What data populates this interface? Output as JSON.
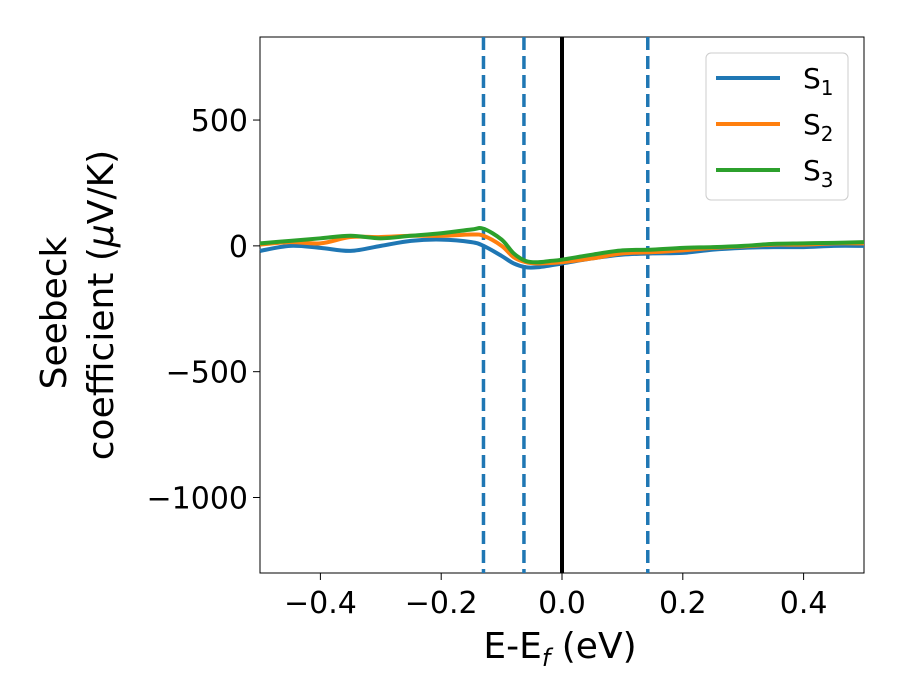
{
  "chart_data": {
    "type": "line",
    "xlabel": {
      "main": "E-E",
      "sub": "f",
      "unit": " (eV)"
    },
    "ylabel": {
      "line1": "Seebeck",
      "line2_pre": "coefficient  (",
      "line2_mu": "μ",
      "line2_post": "V/K)"
    },
    "xlim": [
      -0.5,
      0.5
    ],
    "ylim": [
      -1300,
      830
    ],
    "xticks": [
      {
        "value": -0.4,
        "label": "−0.4"
      },
      {
        "value": -0.2,
        "label": "−0.2"
      },
      {
        "value": 0.0,
        "label": "0.0"
      },
      {
        "value": 0.2,
        "label": "0.2"
      },
      {
        "value": 0.4,
        "label": "0.4"
      }
    ],
    "yticks": [
      {
        "value": 500,
        "label": "500"
      },
      {
        "value": 0,
        "label": "0"
      },
      {
        "value": -500,
        "label": "−500"
      },
      {
        "value": -1000,
        "label": "−1000"
      }
    ],
    "legend_position": "top-right",
    "vertical_lines": [
      {
        "x": -0.13,
        "style": "dashed",
        "color": "#1f77b4"
      },
      {
        "x": -0.063,
        "style": "dashed",
        "color": "#1f77b4"
      },
      {
        "x": 0.0,
        "style": "solid",
        "color": "#000000"
      },
      {
        "x": 0.142,
        "style": "dashed",
        "color": "#1f77b4"
      }
    ],
    "x": [
      -0.5,
      -0.45,
      -0.4,
      -0.35,
      -0.3,
      -0.25,
      -0.2,
      -0.15,
      -0.13,
      -0.1,
      -0.08,
      -0.06,
      -0.04,
      -0.02,
      0.0,
      0.05,
      0.1,
      0.15,
      0.2,
      0.25,
      0.3,
      0.35,
      0.4,
      0.45,
      0.5
    ],
    "series": [
      {
        "name": "S",
        "sub": "1",
        "color": "#1f77b4",
        "values": [
          -20,
          0,
          -8,
          -20,
          0,
          20,
          25,
          15,
          0,
          -40,
          -70,
          -85,
          -85,
          -78,
          -70,
          -50,
          -35,
          -30,
          -28,
          -15,
          -8,
          -5,
          -5,
          0,
          0
        ]
      },
      {
        "name": "S",
        "sub": "2",
        "color": "#ff7f0e",
        "values": [
          5,
          15,
          10,
          35,
          35,
          40,
          40,
          45,
          40,
          0,
          -45,
          -65,
          -70,
          -68,
          -65,
          -50,
          -30,
          -25,
          -18,
          -8,
          -2,
          5,
          5,
          10,
          10
        ]
      },
      {
        "name": "S",
        "sub": "3",
        "color": "#2ca02c",
        "values": [
          10,
          20,
          30,
          40,
          30,
          40,
          50,
          65,
          68,
          25,
          -30,
          -60,
          -65,
          -60,
          -55,
          -35,
          -18,
          -15,
          -8,
          -5,
          0,
          8,
          10,
          12,
          15
        ]
      }
    ]
  }
}
